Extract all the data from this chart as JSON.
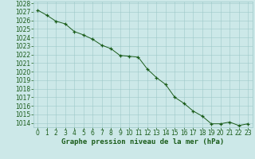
{
  "x": [
    0,
    1,
    2,
    3,
    4,
    5,
    6,
    7,
    8,
    9,
    10,
    11,
    12,
    13,
    14,
    15,
    16,
    17,
    18,
    19,
    20,
    21,
    22,
    23
  ],
  "y": [
    1027.2,
    1026.6,
    1025.9,
    1025.6,
    1024.7,
    1024.3,
    1023.8,
    1023.1,
    1022.7,
    1021.9,
    1021.8,
    1021.7,
    1020.3,
    1019.3,
    1018.5,
    1017.0,
    1016.3,
    1015.4,
    1014.8,
    1013.9,
    1013.9,
    1014.1,
    1013.7,
    1013.9
  ],
  "line_color": "#1a5c1a",
  "marker_color": "#1a5c1a",
  "bg_color": "#cce8e8",
  "grid_color": "#9ec8c8",
  "tick_color": "#1a5c1a",
  "label_color": "#1a5c1a",
  "xlabel": "Graphe pression niveau de la mer (hPa)",
  "ylim": [
    1013.5,
    1028.2
  ],
  "xlim": [
    -0.5,
    23.5
  ],
  "yticks": [
    1014,
    1015,
    1016,
    1017,
    1018,
    1019,
    1020,
    1021,
    1022,
    1023,
    1024,
    1025,
    1026,
    1027,
    1028
  ],
  "xticks": [
    0,
    1,
    2,
    3,
    4,
    5,
    6,
    7,
    8,
    9,
    10,
    11,
    12,
    13,
    14,
    15,
    16,
    17,
    18,
    19,
    20,
    21,
    22,
    23
  ],
  "tick_fontsize": 5.5,
  "xlabel_fontsize": 6.5
}
